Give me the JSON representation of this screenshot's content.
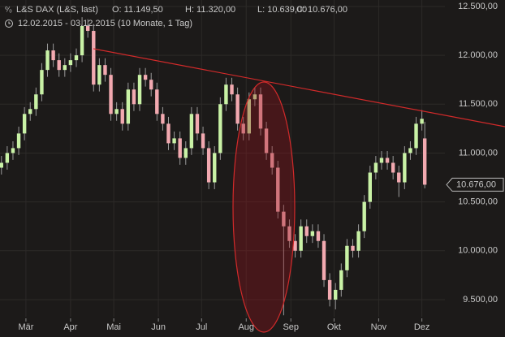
{
  "header": {
    "instrument": "L&S DAX (L&S, last)",
    "open": "O: 11.149,50",
    "high": "H: 11.320,00",
    "low": "L: 10.639,00",
    "close": "C: 10.676,00",
    "range": "12.02.2015 - 03.12.2015 (10 Monate, 1 Tag)"
  },
  "chart_data": {
    "type": "candlestick",
    "x": [
      "12.02.",
      "16.02.",
      "20.02.",
      "24.02.",
      "28.02.",
      "04.03.",
      "08.03.",
      "12.03.",
      "16.03.",
      "20.03.",
      "24.03.",
      "28.03.",
      "01.04.",
      "05.04.",
      "09.04.",
      "13.04.",
      "17.04.",
      "21.04.",
      "25.04.",
      "29.04.",
      "03.05.",
      "07.05.",
      "11.05.",
      "15.05.",
      "19.05.",
      "23.05.",
      "27.05.",
      "31.05.",
      "04.06.",
      "08.06.",
      "12.06.",
      "16.06.",
      "20.06.",
      "24.06.",
      "28.06.",
      "02.07.",
      "06.07.",
      "10.07.",
      "14.07.",
      "18.07.",
      "22.07.",
      "26.07.",
      "30.07.",
      "03.08.",
      "07.08.",
      "11.08.",
      "15.08.",
      "19.08.",
      "23.08.",
      "27.08.",
      "31.08.",
      "04.09.",
      "08.09.",
      "12.09.",
      "16.09.",
      "20.09.",
      "24.09.",
      "28.09.",
      "02.10.",
      "06.10.",
      "10.10.",
      "14.10.",
      "18.10.",
      "22.10.",
      "26.10.",
      "30.10.",
      "03.11.",
      "07.11.",
      "11.11.",
      "15.11.",
      "19.11.",
      "23.11.",
      "27.11.",
      "01.12.",
      "03.12."
    ],
    "open": [
      10850,
      10900,
      11000,
      11050,
      11200,
      11400,
      11450,
      11600,
      11850,
      12050,
      11950,
      11850,
      11900,
      11950,
      12000,
      12300,
      12250,
      11700,
      11900,
      11800,
      11400,
      11450,
      11300,
      11650,
      11500,
      11800,
      11750,
      11650,
      11400,
      11300,
      11100,
      11150,
      10950,
      11050,
      11400,
      11200,
      11050,
      10700,
      11000,
      11500,
      11700,
      11600,
      11300,
      11200,
      11550,
      11600,
      11250,
      11000,
      10850,
      10400,
      10250,
      10100,
      10000,
      10250,
      10150,
      10200,
      10100,
      9700,
      9500,
      9600,
      9800,
      10050,
      10000,
      10200,
      10500,
      10800,
      10900,
      10950,
      10900,
      10800,
      10700,
      11000,
      11050,
      11300,
      11149.5
    ],
    "high": [
      10970,
      11070,
      11120,
      11270,
      11470,
      11520,
      11670,
      11920,
      12120,
      12120,
      12020,
      11970,
      12020,
      12070,
      12390,
      12370,
      12320,
      11970,
      11970,
      11870,
      11520,
      11520,
      11720,
      11720,
      11870,
      11870,
      11820,
      11720,
      11470,
      11370,
      11220,
      11220,
      11120,
      11470,
      11470,
      11270,
      11120,
      11070,
      11570,
      11770,
      11770,
      11670,
      11370,
      11620,
      11670,
      11670,
      11320,
      11070,
      10920,
      10470,
      10320,
      10170,
      10320,
      10320,
      10270,
      10270,
      10170,
      9770,
      9670,
      9870,
      10120,
      10120,
      10270,
      10570,
      10870,
      10970,
      11020,
      11020,
      10970,
      10870,
      11070,
      11120,
      11370,
      11440,
      11320
    ],
    "low": [
      10780,
      10830,
      10930,
      10980,
      11130,
      11330,
      11380,
      11530,
      11780,
      11880,
      11780,
      11780,
      11830,
      11880,
      11930,
      12180,
      11630,
      11630,
      11730,
      11330,
      11330,
      11230,
      11230,
      11430,
      11430,
      11680,
      11580,
      11330,
      11230,
      11030,
      11030,
      10880,
      10880,
      10980,
      11130,
      10980,
      10630,
      10630,
      10930,
      11430,
      11530,
      11230,
      11130,
      11130,
      11480,
      11180,
      10930,
      10780,
      10330,
      9340,
      10030,
      9930,
      9930,
      10080,
      10080,
      10030,
      9630,
      9430,
      9400,
      9530,
      9730,
      9930,
      9930,
      10130,
      10430,
      10730,
      10830,
      10830,
      10730,
      10550,
      10630,
      10930,
      10980,
      11230,
      10639
    ],
    "close": [
      10900,
      11000,
      11050,
      11200,
      11400,
      11450,
      11600,
      11850,
      12050,
      11950,
      11850,
      11900,
      11950,
      12000,
      12300,
      12250,
      11700,
      11900,
      11800,
      11400,
      11450,
      11300,
      11650,
      11500,
      11800,
      11750,
      11650,
      11400,
      11300,
      11100,
      11150,
      10950,
      11050,
      11400,
      11200,
      11050,
      10700,
      11000,
      11500,
      11700,
      11600,
      11300,
      11200,
      11550,
      11600,
      11250,
      11000,
      10850,
      10400,
      10250,
      10100,
      10000,
      10250,
      10150,
      10200,
      10100,
      9700,
      9500,
      9600,
      9800,
      10050,
      10000,
      10200,
      10500,
      10800,
      10900,
      10950,
      10900,
      10800,
      10700,
      11000,
      11050,
      11300,
      11350,
      10676
    ],
    "up_color": "#c9f2a6",
    "down_color": "#f2a9b0",
    "xlim": [
      "11.02.",
      "17.12."
    ],
    "xticks": [
      {
        "value": "01.03.",
        "label": "Mär"
      },
      {
        "value": "01.04.",
        "label": "Apr"
      },
      {
        "value": "01.05.",
        "label": "Mai"
      },
      {
        "value": "01.06.",
        "label": "Jun"
      },
      {
        "value": "01.07.",
        "label": "Jul"
      },
      {
        "value": "01.08.",
        "label": "Aug"
      },
      {
        "value": "01.09.",
        "label": "Sep"
      },
      {
        "value": "01.10.",
        "label": "Okt"
      },
      {
        "value": "01.11.",
        "label": "Nov"
      },
      {
        "value": "01.12.",
        "label": "Dez"
      }
    ],
    "ylim": [
      9325,
      12566
    ],
    "yticks": [
      {
        "value": 9500,
        "label": "9.500,00"
      },
      {
        "value": 10000,
        "label": "10.000,00"
      },
      {
        "value": 10500,
        "label": "10.500,00"
      },
      {
        "value": 11000,
        "label": "11.000,00"
      },
      {
        "value": 11500,
        "label": "11.500,00"
      },
      {
        "value": 12000,
        "label": "12.000,00"
      },
      {
        "value": 12500,
        "label": "12.500,00"
      }
    ],
    "last_label": {
      "value": 10676,
      "label": "10.676,00"
    },
    "grid": true
  }
}
